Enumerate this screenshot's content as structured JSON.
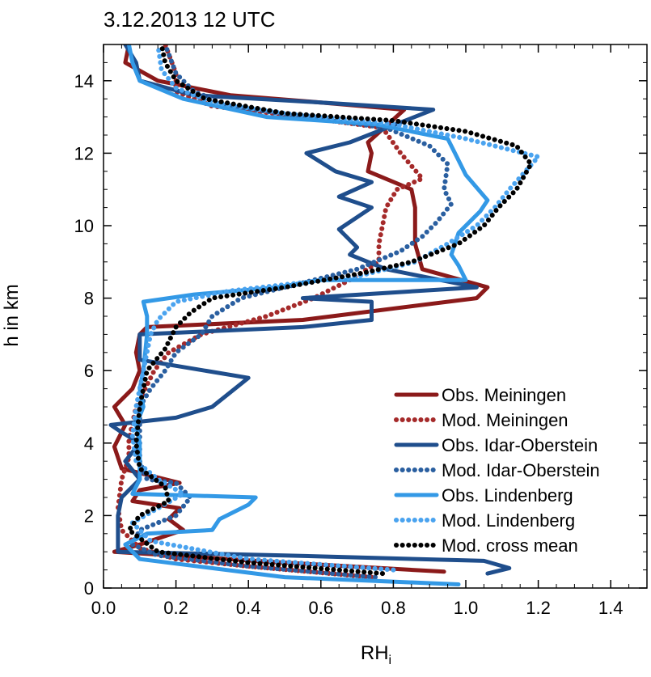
{
  "chart_data": {
    "type": "line",
    "title": "3.12.2013 12 UTC",
    "xlabel": "RH",
    "xlabel_sub": "i",
    "ylabel": "h in km",
    "xlim": [
      0.0,
      1.5
    ],
    "ylim": [
      0,
      15
    ],
    "xticks": [
      "0.0",
      "0.2",
      "0.4",
      "0.6",
      "0.8",
      "1.0",
      "1.2",
      "1.4"
    ],
    "yticks": [
      "0",
      "2",
      "4",
      "6",
      "8",
      "10",
      "12",
      "14"
    ],
    "legend_position": "lower-right",
    "grid": false,
    "series": [
      {
        "name": "Obs. Meiningen",
        "color": "#8b1a1a",
        "style": "solid",
        "points": [
          [
            0.94,
            0.45
          ],
          [
            0.5,
            0.7
          ],
          [
            0.03,
            1.0
          ],
          [
            0.1,
            1.2
          ],
          [
            0.22,
            1.6
          ],
          [
            0.18,
            1.9
          ],
          [
            0.21,
            2.2
          ],
          [
            0.08,
            2.4
          ],
          [
            0.1,
            2.7
          ],
          [
            0.21,
            2.9
          ],
          [
            0.05,
            3.3
          ],
          [
            0.03,
            3.9
          ],
          [
            0.06,
            4.5
          ],
          [
            0.03,
            5.0
          ],
          [
            0.08,
            5.5
          ],
          [
            0.1,
            6.0
          ],
          [
            0.09,
            6.5
          ],
          [
            0.1,
            7.0
          ],
          [
            0.12,
            7.2
          ],
          [
            0.55,
            7.4
          ],
          [
            1.03,
            8.0
          ],
          [
            1.06,
            8.3
          ],
          [
            0.88,
            8.8
          ],
          [
            0.86,
            9.5
          ],
          [
            0.86,
            10.5
          ],
          [
            0.85,
            11.0
          ],
          [
            0.73,
            11.5
          ],
          [
            0.74,
            12.0
          ],
          [
            0.73,
            12.3
          ],
          [
            0.83,
            13.2
          ],
          [
            0.6,
            13.4
          ],
          [
            0.35,
            13.6
          ],
          [
            0.15,
            14.0
          ],
          [
            0.06,
            14.5
          ],
          [
            0.07,
            15.0
          ]
        ]
      },
      {
        "name": "Mod. Meiningen",
        "color": "#a52a2a",
        "style": "dotted",
        "points": [
          [
            0.74,
            0.3
          ],
          [
            0.4,
            0.6
          ],
          [
            0.2,
            0.8
          ],
          [
            0.1,
            1.1
          ],
          [
            0.05,
            1.6
          ],
          [
            0.04,
            2.2
          ],
          [
            0.05,
            3.0
          ],
          [
            0.07,
            3.6
          ],
          [
            0.07,
            4.1
          ],
          [
            0.09,
            5.0
          ],
          [
            0.12,
            5.6
          ],
          [
            0.14,
            6.0
          ],
          [
            0.18,
            6.5
          ],
          [
            0.27,
            7.0
          ],
          [
            0.45,
            7.5
          ],
          [
            0.58,
            8.0
          ],
          [
            0.68,
            8.5
          ],
          [
            0.76,
            9.0
          ],
          [
            0.76,
            9.5
          ],
          [
            0.77,
            10.0
          ],
          [
            0.78,
            10.5
          ],
          [
            0.81,
            11.0
          ],
          [
            0.88,
            11.3
          ],
          [
            0.82,
            12.0
          ],
          [
            0.77,
            12.7
          ],
          [
            0.55,
            13.0
          ],
          [
            0.3,
            13.3
          ],
          [
            0.2,
            13.7
          ],
          [
            0.2,
            14.2
          ],
          [
            0.17,
            15.0
          ]
        ]
      },
      {
        "name": "Obs. Idar-Oberstein",
        "color": "#1f4e8c",
        "style": "solid",
        "points": [
          [
            1.06,
            0.4
          ],
          [
            1.12,
            0.55
          ],
          [
            1.05,
            0.75
          ],
          [
            0.5,
            0.9
          ],
          [
            0.04,
            1.0
          ],
          [
            0.04,
            1.5
          ],
          [
            0.04,
            2.0
          ],
          [
            0.05,
            2.5
          ],
          [
            0.1,
            3.0
          ],
          [
            0.06,
            3.5
          ],
          [
            0.1,
            4.0
          ],
          [
            0.05,
            4.3
          ],
          [
            0.02,
            4.5
          ],
          [
            0.2,
            4.7
          ],
          [
            0.3,
            5.0
          ],
          [
            0.4,
            5.8
          ],
          [
            0.1,
            6.3
          ],
          [
            0.1,
            7.0
          ],
          [
            0.55,
            7.2
          ],
          [
            0.74,
            7.4
          ],
          [
            0.74,
            7.9
          ],
          [
            0.55,
            8.0
          ],
          [
            1.03,
            8.3
          ],
          [
            0.78,
            8.8
          ],
          [
            0.68,
            9.2
          ],
          [
            0.7,
            9.4
          ],
          [
            0.65,
            9.9
          ],
          [
            0.74,
            10.5
          ],
          [
            0.65,
            10.8
          ],
          [
            0.74,
            11.2
          ],
          [
            0.64,
            11.5
          ],
          [
            0.56,
            12.0
          ],
          [
            0.68,
            12.3
          ],
          [
            0.91,
            13.2
          ],
          [
            0.6,
            13.4
          ],
          [
            0.25,
            13.6
          ],
          [
            0.1,
            14.0
          ],
          [
            0.09,
            14.5
          ],
          [
            0.06,
            15.0
          ]
        ]
      },
      {
        "name": "Mod. Idar-Oberstein",
        "color": "#2a5fa0",
        "style": "dotted",
        "points": [
          [
            0.75,
            0.3
          ],
          [
            0.4,
            0.6
          ],
          [
            0.15,
            0.9
          ],
          [
            0.08,
            1.2
          ],
          [
            0.1,
            1.6
          ],
          [
            0.2,
            2.0
          ],
          [
            0.24,
            2.5
          ],
          [
            0.2,
            2.9
          ],
          [
            0.12,
            3.0
          ],
          [
            0.1,
            3.5
          ],
          [
            0.1,
            4.0
          ],
          [
            0.1,
            4.5
          ],
          [
            0.1,
            5.0
          ],
          [
            0.13,
            5.5
          ],
          [
            0.17,
            6.0
          ],
          [
            0.2,
            6.5
          ],
          [
            0.27,
            7.0
          ],
          [
            0.3,
            7.5
          ],
          [
            0.38,
            8.0
          ],
          [
            0.5,
            8.3
          ],
          [
            0.7,
            8.8
          ],
          [
            0.82,
            9.3
          ],
          [
            0.88,
            9.7
          ],
          [
            0.92,
            10.1
          ],
          [
            0.96,
            10.6
          ],
          [
            0.94,
            11.0
          ],
          [
            0.95,
            11.7
          ],
          [
            0.9,
            12.2
          ],
          [
            0.78,
            12.7
          ],
          [
            0.55,
            13.0
          ],
          [
            0.35,
            13.3
          ],
          [
            0.25,
            13.7
          ],
          [
            0.2,
            14.2
          ],
          [
            0.17,
            15.0
          ]
        ]
      },
      {
        "name": "Obs. Lindenberg",
        "color": "#3399e6",
        "style": "solid",
        "points": [
          [
            0.98,
            0.1
          ],
          [
            0.5,
            0.3
          ],
          [
            0.1,
            0.8
          ],
          [
            0.06,
            1.2
          ],
          [
            0.12,
            1.5
          ],
          [
            0.3,
            1.6
          ],
          [
            0.32,
            1.9
          ],
          [
            0.4,
            2.3
          ],
          [
            0.42,
            2.5
          ],
          [
            0.08,
            2.6
          ],
          [
            0.1,
            3.0
          ],
          [
            0.1,
            4.0
          ],
          [
            0.09,
            4.5
          ],
          [
            0.11,
            5.0
          ],
          [
            0.1,
            5.5
          ],
          [
            0.11,
            6.0
          ],
          [
            0.12,
            7.0
          ],
          [
            0.12,
            7.5
          ],
          [
            0.11,
            7.9
          ],
          [
            0.25,
            8.1
          ],
          [
            0.48,
            8.3
          ],
          [
            0.6,
            8.5
          ],
          [
            1.0,
            8.5
          ],
          [
            0.98,
            8.9
          ],
          [
            0.96,
            9.2
          ],
          [
            0.98,
            9.8
          ],
          [
            1.04,
            10.4
          ],
          [
            1.06,
            10.7
          ],
          [
            1.0,
            11.4
          ],
          [
            0.97,
            12.0
          ],
          [
            0.95,
            12.4
          ],
          [
            0.75,
            12.8
          ],
          [
            0.45,
            13.0
          ],
          [
            0.22,
            13.5
          ],
          [
            0.1,
            14.0
          ],
          [
            0.08,
            14.5
          ],
          [
            0.07,
            15.0
          ]
        ]
      },
      {
        "name": "Mod. Lindenberg",
        "color": "#4aa3ef",
        "style": "dotted",
        "points": [
          [
            0.8,
            0.5
          ],
          [
            0.4,
            0.8
          ],
          [
            0.13,
            1.3
          ],
          [
            0.08,
            1.8
          ],
          [
            0.15,
            2.2
          ],
          [
            0.22,
            2.6
          ],
          [
            0.15,
            3.0
          ],
          [
            0.09,
            3.5
          ],
          [
            0.08,
            4.2
          ],
          [
            0.09,
            5.0
          ],
          [
            0.11,
            6.0
          ],
          [
            0.13,
            7.0
          ],
          [
            0.15,
            7.4
          ],
          [
            0.2,
            7.9
          ],
          [
            0.35,
            8.2
          ],
          [
            0.7,
            8.6
          ],
          [
            0.86,
            9.0
          ],
          [
            0.95,
            9.5
          ],
          [
            1.03,
            10.0
          ],
          [
            1.08,
            10.5
          ],
          [
            1.12,
            11.0
          ],
          [
            1.2,
            11.9
          ],
          [
            1.0,
            12.4
          ],
          [
            0.8,
            12.8
          ],
          [
            0.5,
            13.1
          ],
          [
            0.3,
            13.4
          ],
          [
            0.2,
            13.8
          ],
          [
            0.16,
            14.3
          ],
          [
            0.15,
            15.0
          ]
        ]
      },
      {
        "name": "Mod. cross mean",
        "color": "#000000",
        "style": "dotted",
        "points": [
          [
            0.77,
            0.4
          ],
          [
            0.4,
            0.7
          ],
          [
            0.15,
            1.0
          ],
          [
            0.07,
            1.6
          ],
          [
            0.1,
            2.0
          ],
          [
            0.18,
            2.4
          ],
          [
            0.17,
            2.8
          ],
          [
            0.1,
            3.3
          ],
          [
            0.09,
            4.0
          ],
          [
            0.1,
            5.0
          ],
          [
            0.12,
            6.0
          ],
          [
            0.17,
            6.6
          ],
          [
            0.2,
            7.2
          ],
          [
            0.24,
            7.6
          ],
          [
            0.3,
            8.0
          ],
          [
            0.5,
            8.3
          ],
          [
            0.72,
            8.7
          ],
          [
            0.85,
            9.0
          ],
          [
            0.98,
            9.5
          ],
          [
            1.05,
            10.0
          ],
          [
            1.09,
            10.5
          ],
          [
            1.14,
            11.0
          ],
          [
            1.18,
            11.7
          ],
          [
            1.14,
            12.2
          ],
          [
            1.0,
            12.6
          ],
          [
            0.8,
            12.9
          ],
          [
            0.5,
            13.1
          ],
          [
            0.28,
            13.5
          ],
          [
            0.2,
            14.0
          ],
          [
            0.17,
            14.5
          ],
          [
            0.16,
            15.0
          ]
        ]
      }
    ]
  }
}
